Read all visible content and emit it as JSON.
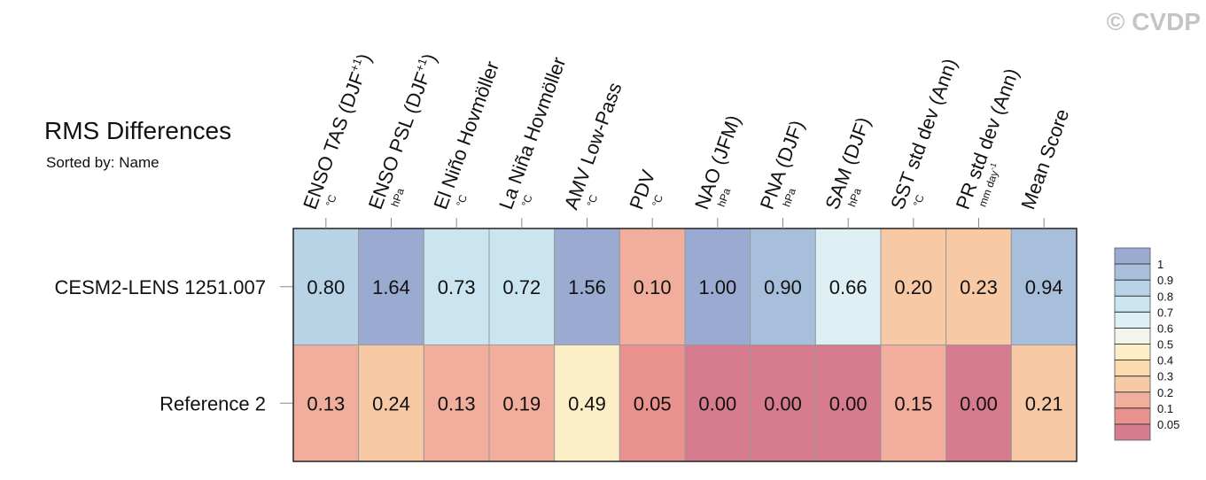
{
  "chart_data": {
    "type": "heatmap",
    "title": "RMS Differences",
    "subtitle": "Sorted by: Name",
    "watermark": "© CVDP",
    "columns": [
      {
        "label": "ENSO TAS (DJF",
        "sup": "+1",
        "suffix": ")",
        "unit": "°C"
      },
      {
        "label": "ENSO PSL (DJF",
        "sup": "+1",
        "suffix": ")",
        "unit": "hPa"
      },
      {
        "label": "El Niño Hovmöller",
        "unit": "°C"
      },
      {
        "label": "La Niña Hovmöller",
        "unit": "°C"
      },
      {
        "label": "AMV Low-Pass",
        "unit": "°C"
      },
      {
        "label": "PDV",
        "unit": "°C"
      },
      {
        "label": "NAO (JFM)",
        "unit": "hPa"
      },
      {
        "label": "PNA (DJF)",
        "unit": "hPa"
      },
      {
        "label": "SAM (DJF)",
        "unit": "hPa"
      },
      {
        "label": "SST std dev (Ann)",
        "unit": "°C"
      },
      {
        "label": "PR std dev (Ann)",
        "unit": "mm day",
        "unit_sup": "-1"
      },
      {
        "label": "Mean Score"
      }
    ],
    "rows": [
      "CESM2-LENS 1251.007",
      "Reference 2"
    ],
    "values": [
      [
        0.8,
        1.64,
        0.73,
        0.72,
        1.56,
        0.1,
        1.0,
        0.9,
        0.66,
        0.2,
        0.23,
        0.94
      ],
      [
        0.13,
        0.24,
        0.13,
        0.19,
        0.49,
        0.05,
        0.0,
        0.0,
        0.0,
        0.15,
        0.0,
        0.21
      ]
    ],
    "value_labels": [
      [
        "0.80",
        "1.64",
        "0.73",
        "0.72",
        "1.56",
        "0.10",
        "1.00",
        "0.90",
        "0.66",
        "0.20",
        "0.23",
        "0.94"
      ],
      [
        "0.13",
        "0.24",
        "0.13",
        "0.19",
        "0.49",
        "0.05",
        "0.00",
        "0.00",
        "0.00",
        "0.15",
        "0.00",
        "0.21"
      ]
    ],
    "colorbar_levels": [
      0.05,
      0.1,
      0.2,
      0.3,
      0.4,
      0.5,
      0.6,
      0.7,
      0.8,
      0.9,
      1
    ],
    "colorbar_colors": [
      "#d67b8e",
      "#e8918e",
      "#f2ae9c",
      "#f8c9a5",
      "#fbdcae",
      "#fcefc8",
      "#f3f4ec",
      "#dff0f5",
      "#cae5ef",
      "#b8d3e6",
      "#a8bfdb",
      "#9aaad0"
    ]
  }
}
